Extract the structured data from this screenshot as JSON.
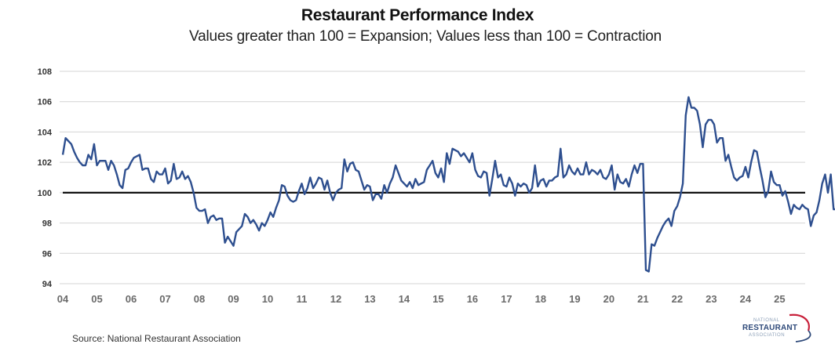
{
  "chart_data": {
    "type": "line",
    "title": "Restaurant Performance Index",
    "subtitle": "Values greater than 100 = Expansion; Values less than 100 = Contraction",
    "xlabel": "",
    "ylabel": "",
    "ylim": [
      94,
      108
    ],
    "yticks": [
      94,
      96,
      98,
      100,
      102,
      104,
      106,
      108
    ],
    "ytick_labels": [
      "94",
      "96",
      "98",
      "100",
      "102",
      "104",
      "106",
      "108"
    ],
    "xlim": [
      2004.0,
      2025.75
    ],
    "xticks": [
      2004,
      2005,
      2006,
      2007,
      2008,
      2009,
      2010,
      2011,
      2012,
      2013,
      2014,
      2015,
      2016,
      2017,
      2018,
      2019,
      2020,
      2021,
      2022,
      2023,
      2024,
      2025
    ],
    "xtick_labels": [
      "04",
      "05",
      "06",
      "07",
      "08",
      "09",
      "10",
      "11",
      "12",
      "13",
      "14",
      "15",
      "16",
      "17",
      "18",
      "19",
      "20",
      "21",
      "22",
      "23",
      "24",
      "25"
    ],
    "grid": true,
    "reference_line": {
      "value": 100,
      "color": "#111111"
    },
    "series": [
      {
        "name": "Restaurant Performance Index",
        "color": "#2e4f8f",
        "frequency": "monthly",
        "start": "2004-01",
        "values": [
          102.5,
          103.6,
          103.4,
          103.2,
          102.7,
          102.3,
          102.0,
          101.8,
          101.8,
          102.5,
          102.2,
          103.2,
          101.8,
          102.1,
          102.1,
          102.1,
          101.5,
          102.1,
          101.8,
          101.2,
          100.5,
          100.3,
          101.5,
          101.6,
          102.0,
          102.3,
          102.4,
          102.5,
          101.5,
          101.6,
          101.6,
          100.9,
          100.7,
          101.4,
          101.2,
          101.2,
          101.6,
          100.6,
          100.8,
          101.9,
          100.9,
          101.0,
          101.4,
          100.9,
          101.1,
          100.7,
          100.0,
          99.0,
          98.8,
          98.8,
          98.9,
          98.0,
          98.4,
          98.5,
          98.2,
          98.3,
          98.3,
          96.7,
          97.1,
          96.8,
          96.5,
          97.4,
          97.6,
          97.8,
          98.6,
          98.4,
          98.0,
          98.2,
          97.9,
          97.5,
          98.0,
          97.8,
          98.2,
          98.7,
          98.4,
          99.0,
          99.5,
          100.5,
          100.4,
          99.8,
          99.5,
          99.4,
          99.5,
          100.1,
          100.6,
          99.9,
          100.3,
          101.0,
          100.3,
          100.6,
          101.0,
          100.9,
          100.2,
          100.8,
          100.0,
          99.5,
          100.0,
          100.2,
          100.3,
          102.2,
          101.4,
          101.9,
          102.0,
          101.5,
          101.4,
          100.8,
          100.2,
          100.5,
          100.4,
          99.5,
          99.9,
          99.9,
          99.6,
          100.5,
          100.0,
          100.6,
          101.0,
          101.8,
          101.3,
          100.8,
          100.6,
          100.4,
          100.7,
          100.3,
          100.9,
          100.5,
          100.6,
          100.7,
          101.5,
          101.8,
          102.1,
          101.3,
          101.0,
          101.6,
          100.7,
          102.6,
          101.9,
          102.9,
          102.8,
          102.7,
          102.4,
          102.6,
          102.3,
          102.0,
          102.6,
          101.5,
          101.1,
          101.0,
          101.4,
          101.3,
          99.8,
          100.9,
          102.1,
          101.0,
          101.2,
          100.5,
          100.4,
          101.0,
          100.6,
          99.8,
          100.6,
          100.4,
          100.6,
          100.5,
          100.0,
          100.3,
          101.8,
          100.4,
          100.8,
          100.9,
          100.4,
          100.8,
          100.8,
          101.0,
          101.1,
          102.9,
          101.0,
          101.2,
          101.8,
          101.4,
          101.2,
          101.6,
          101.2,
          101.2,
          102.0,
          101.2,
          101.5,
          101.4,
          101.2,
          101.5,
          101.0,
          100.9,
          101.2,
          101.8,
          100.2,
          101.2,
          100.7,
          100.6,
          100.9,
          100.4,
          101.2,
          101.8,
          101.3,
          101.9,
          101.9,
          94.9,
          94.8,
          96.6,
          96.5,
          97.0,
          97.4,
          97.8,
          98.1,
          98.3,
          97.8,
          98.8,
          99.1,
          99.7,
          100.6,
          105.1,
          106.3,
          105.6,
          105.6,
          105.4,
          104.5,
          103.0,
          104.5,
          104.8,
          104.8,
          104.5,
          103.3,
          103.6,
          103.6,
          102.1,
          102.5,
          101.7,
          101.0,
          100.8,
          101.0,
          101.1,
          101.7,
          101.0,
          102.0,
          102.8,
          102.7,
          101.7,
          100.8,
          99.7,
          100.1,
          101.4,
          100.7,
          100.5,
          100.5,
          99.8,
          100.1,
          99.4,
          98.6,
          99.2,
          99.0,
          98.9,
          99.2,
          99.0,
          98.9,
          97.8,
          98.5,
          98.7,
          99.5,
          100.6,
          101.2,
          100.0,
          101.2,
          98.9,
          98.9,
          99.6,
          100.0,
          100.1,
          99.9,
          99.8,
          99.9,
          99.5,
          99.9,
          100.0
        ]
      }
    ]
  },
  "footer": {
    "source": "Source: National Restaurant Association"
  },
  "logo": {
    "line1": "NATIONAL",
    "line2": "RESTAURANT",
    "line3": "ASSOCIATION"
  }
}
